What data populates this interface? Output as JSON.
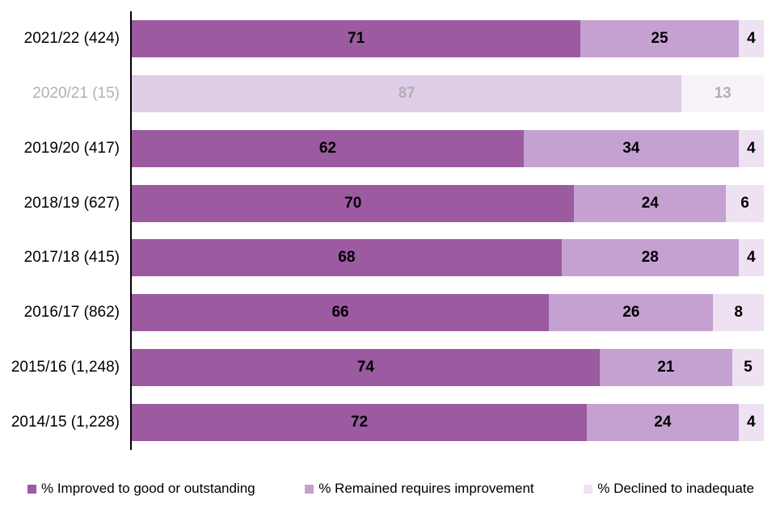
{
  "chart_data": {
    "type": "bar",
    "subtype": "horizontal-stacked",
    "title": "",
    "xlabel": "",
    "ylabel": "",
    "xlim": [
      0,
      100
    ],
    "grid": false,
    "legend_position": "bottom",
    "value_labels": true,
    "categories": [
      "2021/22 (424)",
      "2020/21 (15)",
      "2019/20 (417)",
      "2018/19 (627)",
      "2017/18 (415)",
      "2016/17 (862)",
      "2015/16 (1,248)",
      "2014/15 (1,228)"
    ],
    "series": [
      {
        "name": "% Improved to good or outstanding",
        "color": "#9c5ba1",
        "muted_color": "#decee7",
        "values": [
          71,
          87,
          62,
          70,
          68,
          66,
          74,
          72
        ]
      },
      {
        "name": "% Remained requires improvement",
        "color": "#c5a1d1",
        "muted_color": "#f8f3fa",
        "values": [
          25,
          13,
          34,
          24,
          28,
          26,
          21,
          24
        ]
      },
      {
        "name": "% Declined to inadequate",
        "color": "#eee2f2",
        "muted_color": "#f8f3fa",
        "values": [
          4,
          null,
          4,
          6,
          4,
          8,
          5,
          4
        ]
      }
    ],
    "muted_rows": [
      1
    ],
    "colors": {
      "label_color": "#000000",
      "muted_label_color": "#b3afb6",
      "axis_color": "#000000",
      "background": "#ffffff"
    }
  }
}
